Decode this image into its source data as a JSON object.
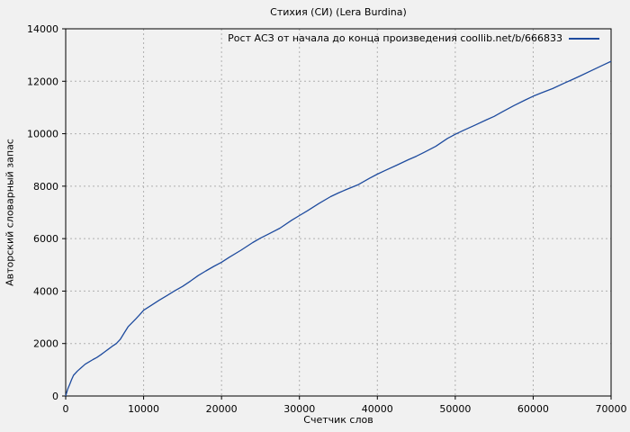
{
  "colors": {
    "background": "#f1f1f1",
    "border": "#000000",
    "grid": "#b0b0b0",
    "line": "#1e4b9e",
    "text": "#000000"
  },
  "chart_data": {
    "type": "line",
    "title": "Стихия (СИ) (Lera Burdina)",
    "xlabel": "Счетчик слов",
    "ylabel": "Авторский словарный запас",
    "xlim": [
      0,
      70000
    ],
    "ylim": [
      0,
      14000
    ],
    "x_ticks": [
      0,
      10000,
      20000,
      30000,
      40000,
      50000,
      60000,
      70000
    ],
    "y_ticks": [
      0,
      2000,
      4000,
      6000,
      8000,
      10000,
      12000,
      14000
    ],
    "grid": true,
    "grid_style": "dashed",
    "legend_position": "top-right-inside",
    "line_color": "#1e4b9e",
    "series": [
      {
        "name": "Рост АСЗ от начала до конца произведения coollib.net/b/666833",
        "points": [
          [
            0,
            0
          ],
          [
            250,
            260
          ],
          [
            500,
            430
          ],
          [
            750,
            620
          ],
          [
            1000,
            790
          ],
          [
            1500,
            950
          ],
          [
            2000,
            1080
          ],
          [
            2500,
            1210
          ],
          [
            3000,
            1300
          ],
          [
            3500,
            1390
          ],
          [
            4000,
            1470
          ],
          [
            4500,
            1570
          ],
          [
            5000,
            1680
          ],
          [
            5500,
            1790
          ],
          [
            6000,
            1900
          ],
          [
            6500,
            2000
          ],
          [
            7000,
            2160
          ],
          [
            7500,
            2400
          ],
          [
            8000,
            2640
          ],
          [
            8500,
            2790
          ],
          [
            9000,
            2940
          ],
          [
            9500,
            3100
          ],
          [
            10000,
            3270
          ],
          [
            11000,
            3460
          ],
          [
            12000,
            3650
          ],
          [
            13000,
            3830
          ],
          [
            14000,
            4010
          ],
          [
            15000,
            4180
          ],
          [
            16000,
            4380
          ],
          [
            17000,
            4590
          ],
          [
            18000,
            4770
          ],
          [
            19000,
            4940
          ],
          [
            20000,
            5100
          ],
          [
            21000,
            5290
          ],
          [
            22500,
            5560
          ],
          [
            24000,
            5850
          ],
          [
            25000,
            6020
          ],
          [
            26000,
            6170
          ],
          [
            27500,
            6400
          ],
          [
            29000,
            6700
          ],
          [
            30000,
            6880
          ],
          [
            31000,
            7060
          ],
          [
            32500,
            7340
          ],
          [
            34000,
            7600
          ],
          [
            35000,
            7740
          ],
          [
            36000,
            7870
          ],
          [
            37500,
            8050
          ],
          [
            39000,
            8300
          ],
          [
            40000,
            8460
          ],
          [
            41000,
            8600
          ],
          [
            42500,
            8800
          ],
          [
            44000,
            9010
          ],
          [
            45000,
            9140
          ],
          [
            46000,
            9290
          ],
          [
            47500,
            9520
          ],
          [
            49000,
            9820
          ],
          [
            50000,
            9980
          ],
          [
            51000,
            10120
          ],
          [
            52500,
            10320
          ],
          [
            54000,
            10530
          ],
          [
            55000,
            10660
          ],
          [
            56000,
            10830
          ],
          [
            57500,
            11070
          ],
          [
            59000,
            11290
          ],
          [
            60000,
            11430
          ],
          [
            61000,
            11550
          ],
          [
            62500,
            11720
          ],
          [
            64000,
            11930
          ],
          [
            65000,
            12060
          ],
          [
            66000,
            12200
          ],
          [
            67500,
            12410
          ],
          [
            69000,
            12620
          ],
          [
            70000,
            12760
          ]
        ]
      }
    ]
  }
}
